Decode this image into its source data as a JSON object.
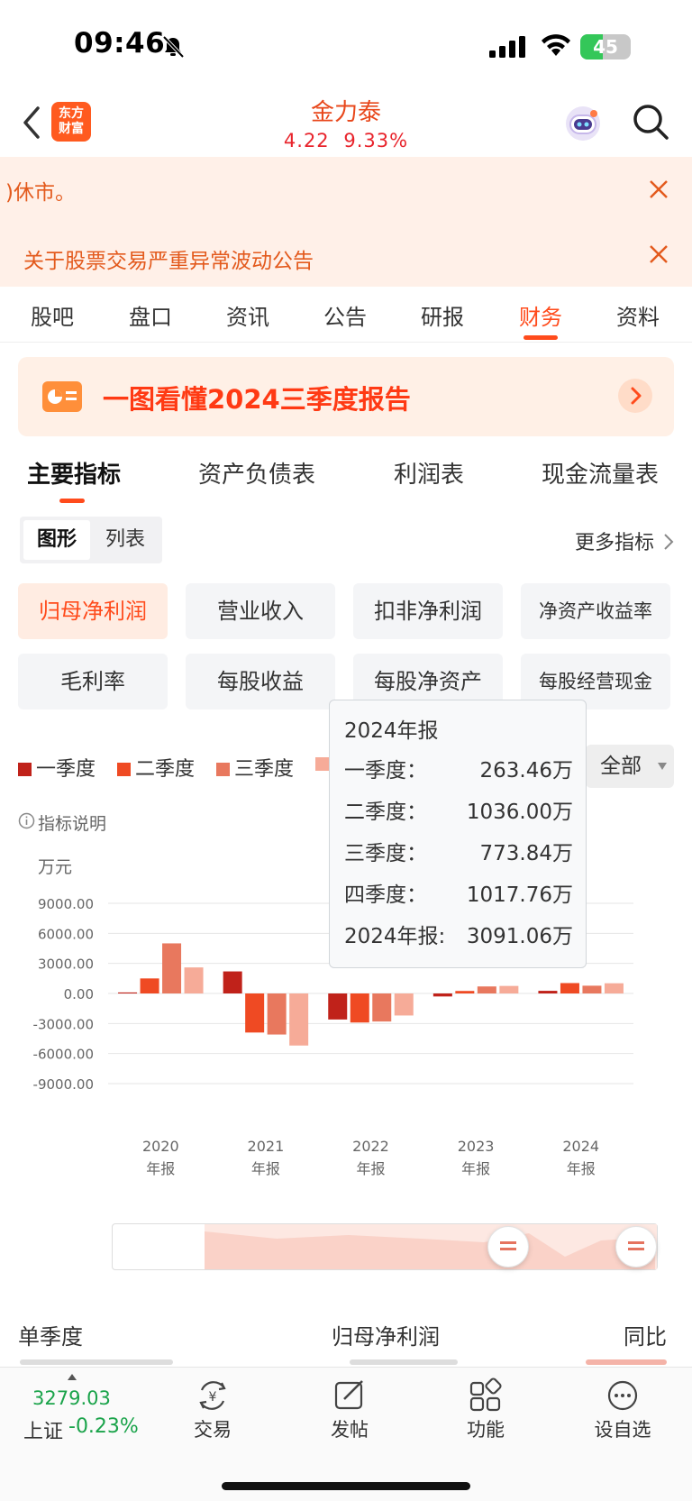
{
  "status_bar": {
    "time": "09:46",
    "battery": "45",
    "battery_level": 0.45
  },
  "header": {
    "logo_line1": "东方",
    "logo_line2": "财富",
    "stock_name": "金力泰",
    "price": "4.22",
    "change_pct": "9.33%"
  },
  "notices": [
    {
      "text": ")休市。"
    },
    {
      "text": "关于股票交易严重异常波动公告"
    }
  ],
  "top_tabs": [
    "股吧",
    "盘口",
    "资讯",
    "公告",
    "研报",
    "财务",
    "资料"
  ],
  "banner": {
    "text": "一图看懂2024三季度报告"
  },
  "sub_tabs": [
    "主要指标",
    "资产负债表",
    "利润表",
    "现金流量表"
  ],
  "view_toggle": [
    "图形",
    "列表"
  ],
  "more_indicators": "更多指标",
  "metrics": [
    "归母净利润",
    "营业收入",
    "扣非净利润",
    "净资产收益率",
    "毛利率",
    "每股收益",
    "每股净资产",
    "每股经营现金"
  ],
  "legend": [
    "一季度",
    "二季度",
    "三季度"
  ],
  "period_select": "全部",
  "indicator_note": "指标说明",
  "unit": "万元",
  "tooltip": {
    "title": "2024年报",
    "rows": [
      {
        "label": "一季度：",
        "value": "263.46万"
      },
      {
        "label": "二季度：",
        "value": "1036.00万"
      },
      {
        "label": "三季度：",
        "value": "773.84万"
      },
      {
        "label": "四季度：",
        "value": "1017.76万"
      },
      {
        "label": "2024年报:",
        "value": "3091.06万"
      }
    ]
  },
  "chart_data": {
    "type": "bar",
    "ylabel": "万元",
    "yticks": [
      "9000.00",
      "6000.00",
      "3000.00",
      "0.00",
      "-3000.00",
      "-6000.00",
      "-9000.00"
    ],
    "ylim": [
      -9000,
      9000
    ],
    "categories": [
      {
        "year": "2020",
        "label": "年报"
      },
      {
        "year": "2021",
        "label": "年报"
      },
      {
        "year": "2022",
        "label": "年报"
      },
      {
        "year": "2023",
        "label": "年报"
      },
      {
        "year": "2024",
        "label": "年报"
      }
    ],
    "series": [
      {
        "name": "一季度",
        "color": "#c0221a",
        "values": [
          100,
          2200,
          -2600,
          -300,
          263.46
        ]
      },
      {
        "name": "二季度",
        "color": "#ef4a23",
        "values": [
          1500,
          -3900,
          -2900,
          250,
          1036.0
        ]
      },
      {
        "name": "三季度",
        "color": "#e8785e",
        "values": [
          5000,
          -4100,
          -2800,
          700,
          773.84
        ]
      },
      {
        "color": "#f6ab98",
        "values": [
          2600,
          -5200,
          -2200,
          750,
          1017.76
        ]
      }
    ],
    "grid": true
  },
  "table_header": {
    "col1": "单季度",
    "col2": "归母净利润",
    "col3": "同比"
  },
  "bottom_bar": {
    "index_value": "3279.03",
    "index_name": "上证",
    "index_change": "-0.23%",
    "items": [
      "交易",
      "发帖",
      "功能",
      "设自选"
    ]
  }
}
